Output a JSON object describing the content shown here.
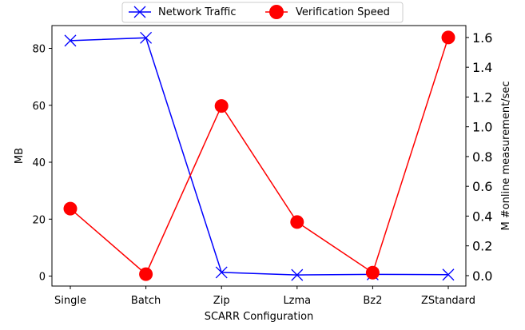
{
  "chart_data": {
    "type": "line",
    "title": "",
    "xlabel": "SCARR Configuration",
    "ylabel": "MB",
    "y2label": "M #online measurement/sec",
    "categories": [
      "Single",
      "Batch",
      "Zip",
      "Lzma",
      "Bz2",
      "ZStandard"
    ],
    "ylim": [
      -3.5,
      88
    ],
    "y2lim": [
      -0.07,
      1.68
    ],
    "yticks": [
      0,
      20,
      40,
      60,
      80
    ],
    "y2ticks": [
      "0.0",
      "0.2",
      "0.4",
      "0.6",
      "0.8",
      "1.0",
      "1.2",
      "1.4",
      "1.6"
    ],
    "legend_position": "top-center",
    "series": [
      {
        "name": "Network Traffic",
        "axis": "left",
        "color": "#0000ff",
        "marker": "x",
        "values": [
          82.7,
          83.7,
          1.3,
          0.4,
          0.6,
          0.5
        ]
      },
      {
        "name": "Verification Speed",
        "axis": "right",
        "color": "#ff0000",
        "marker": "circle",
        "values": [
          0.45,
          0.01,
          1.14,
          0.36,
          0.02,
          1.6
        ]
      }
    ]
  }
}
